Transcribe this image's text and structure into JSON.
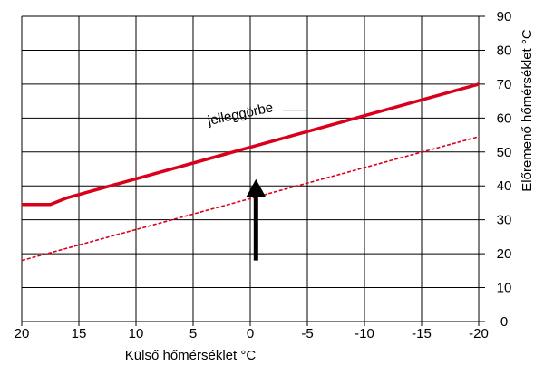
{
  "chart_data": {
    "type": "line",
    "title": "",
    "xlabel": "Külső hőmérséklet °C",
    "ylabel": "Előremenő hőmérséklet °C",
    "xlim": [
      20,
      -20
    ],
    "ylim": [
      0,
      90
    ],
    "xticks": [
      20,
      15,
      10,
      5,
      0,
      -5,
      -10,
      -15,
      -20
    ],
    "yticks": [
      0,
      10,
      20,
      30,
      40,
      50,
      60,
      70,
      80,
      90
    ],
    "xtick_labels": [
      "20",
      "15",
      "10",
      "5",
      "0",
      "-5",
      "-10",
      "-15",
      "-20"
    ],
    "ytick_labels": [
      "0",
      "10",
      "20",
      "30",
      "40",
      "50",
      "60",
      "70",
      "80",
      "90"
    ],
    "grid": true,
    "series": [
      {
        "name": "jelleggörbe",
        "style": "solid",
        "color": "#d9001b",
        "x": [
          20,
          17.5,
          16,
          -20
        ],
        "y": [
          34.5,
          34.5,
          36.5,
          70
        ]
      },
      {
        "style": "dashed",
        "color": "#d9001b",
        "x": [
          20,
          -20
        ],
        "y": [
          18,
          54.5
        ]
      }
    ],
    "annotations": [
      {
        "text": "jelleggörbe",
        "x": 0,
        "y": 61
      }
    ],
    "arrow": {
      "x": -0.5,
      "y_from": 18,
      "y_to": 42,
      "color": "#000000"
    }
  }
}
